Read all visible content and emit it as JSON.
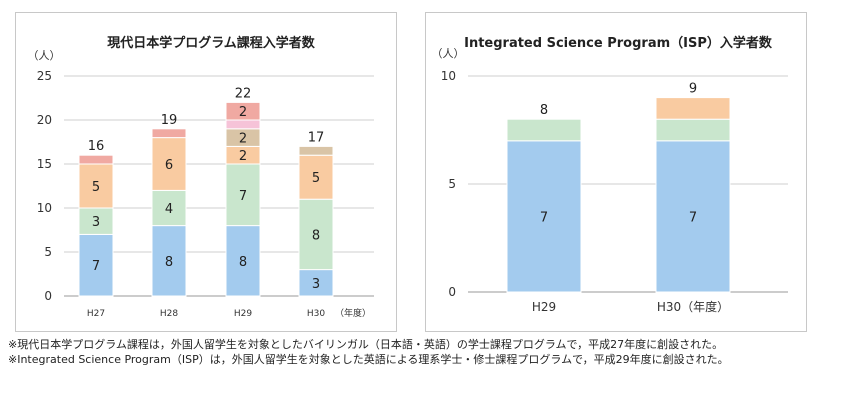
{
  "chart_data": [
    {
      "type": "bar",
      "stacked": true,
      "title": "現代日本学プログラム課程入学者数",
      "unit_label": "（人）",
      "x_unit_label": "（年度）",
      "categories": [
        "H27",
        "H28",
        "H29",
        "H30"
      ],
      "ylim": [
        0,
        25
      ],
      "yticks": [
        0,
        5,
        10,
        15,
        20,
        25
      ],
      "ytick_labels": [
        "0",
        "5",
        "10",
        "15",
        "20",
        "25"
      ],
      "totals": [
        16,
        19,
        22,
        17
      ],
      "total_labels": [
        "16",
        "19",
        "22",
        "17"
      ],
      "series": [
        {
          "color": "#a3cbee",
          "values": [
            7,
            8,
            8,
            3
          ],
          "labels": [
            "7",
            "8",
            "8",
            "3"
          ]
        },
        {
          "color": "#c9e6cd",
          "values": [
            3,
            4,
            7,
            8
          ],
          "labels": [
            "3",
            "4",
            "7",
            "8"
          ]
        },
        {
          "color": "#f9cba1",
          "values": [
            5,
            6,
            2,
            5
          ],
          "labels": [
            "5",
            "6",
            "2",
            "5"
          ]
        },
        {
          "color": "#d9c4a6",
          "values": [
            0,
            0,
            2,
            1
          ],
          "labels": [
            "",
            "",
            "2",
            ""
          ]
        },
        {
          "color": "#f6c3d8",
          "values": [
            0,
            0,
            1,
            0
          ],
          "labels": [
            "",
            "",
            "",
            ""
          ]
        },
        {
          "color": "#f0a9a2",
          "values": [
            1,
            1,
            2,
            0
          ],
          "labels": [
            "",
            "",
            "2",
            ""
          ]
        }
      ]
    },
    {
      "type": "bar",
      "stacked": true,
      "title": "Integrated Science Program（ISP）入学者数",
      "unit_label": "（人）",
      "categories": [
        "H29",
        "H30（年度）"
      ],
      "ylim": [
        0,
        10
      ],
      "yticks": [
        0,
        5,
        10
      ],
      "ytick_labels": [
        "0",
        "5",
        "10"
      ],
      "totals": [
        8,
        9
      ],
      "total_labels": [
        "8",
        "9"
      ],
      "series": [
        {
          "color": "#a3cbee",
          "values": [
            7,
            7
          ],
          "labels": [
            "7",
            "7"
          ]
        },
        {
          "color": "#c9e6cd",
          "values": [
            1,
            1
          ],
          "labels": [
            "",
            ""
          ]
        },
        {
          "color": "#f9cba1",
          "values": [
            0,
            1
          ],
          "labels": [
            "",
            ""
          ]
        }
      ]
    }
  ],
  "notes": [
    "※現代日本学プログラム課程は，外国人留学生を対象としたバイリンガル（日本語・英語）の学士課程プログラムで，平成27年度に創設された。",
    "※Integrated Science Program（ISP）は，外国人留学生を対象とした英語による理系学士・修士課程プログラムで，平成29年度に創設された。"
  ]
}
